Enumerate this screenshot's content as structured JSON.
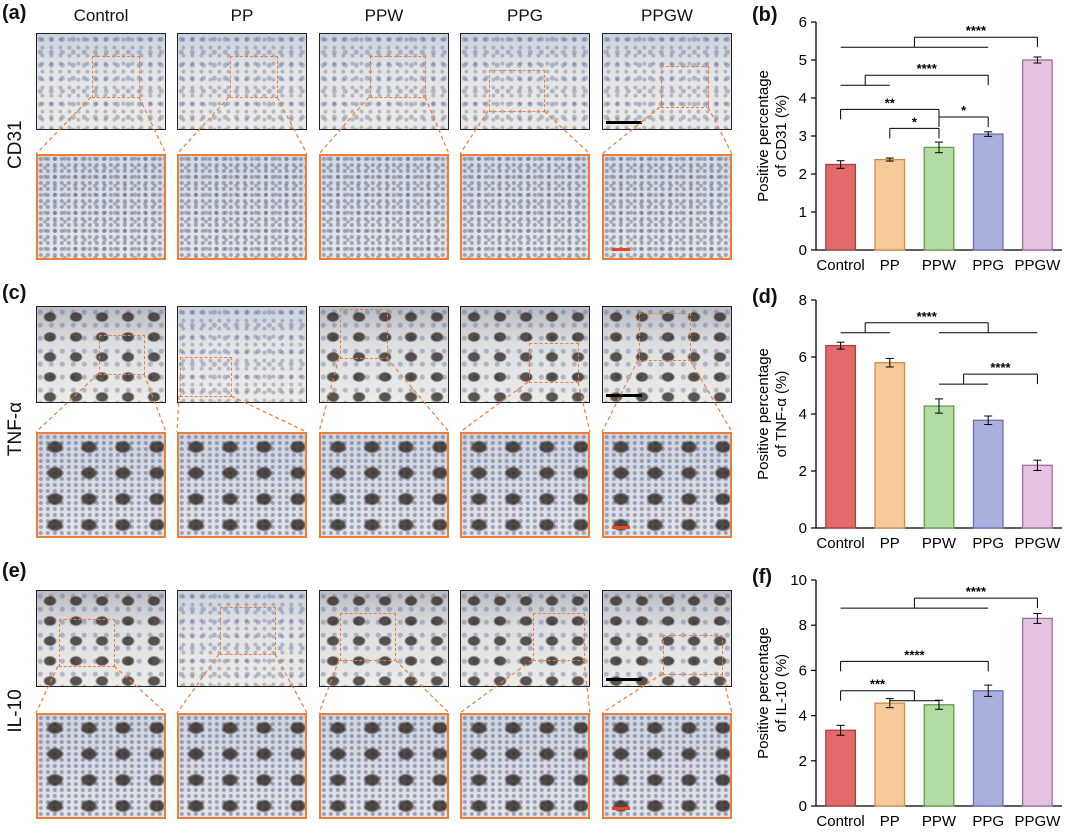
{
  "panel_letters": {
    "a": "(a)",
    "b": "(b)",
    "c": "(c)",
    "d": "(d)",
    "e": "(e)",
    "f": "(f)"
  },
  "columns": [
    "Control",
    "PP",
    "PPW",
    "PPG",
    "PPGW"
  ],
  "row_labels": [
    "CD31",
    "TNF-α",
    "IL-10"
  ],
  "colors": {
    "zoom_frame": "#ee7d35",
    "scale_bar_black": "#000000",
    "scale_bar_red": "#ee4422",
    "bar_fills": [
      "#e26a6a",
      "#f6c99a",
      "#b3dba4",
      "#aab0dd",
      "#e4c3df"
    ],
    "bar_strokes": [
      "#b03a3a",
      "#d38d45",
      "#5ea04e",
      "#6a6fb0",
      "#a46aa6"
    ]
  },
  "chart_data": [
    {
      "id": "b",
      "type": "bar",
      "categories": [
        "Control",
        "PP",
        "PPW",
        "PPG",
        "PPGW"
      ],
      "values": [
        2.25,
        2.38,
        2.7,
        3.05,
        5.0
      ],
      "errors": [
        0.1,
        0.04,
        0.14,
        0.06,
        0.08
      ],
      "ylabel_line1": "Positive percentage",
      "ylabel_line2": "of CD31 (%)",
      "ylim": [
        0,
        6
      ],
      "ticks": [
        0,
        1,
        2,
        3,
        4,
        5,
        6
      ],
      "tick_labels": [
        "0",
        "1",
        "2",
        "3",
        "4",
        "5",
        "6"
      ],
      "significance": [
        {
          "label": "****",
          "from": [
            0,
            1,
            2,
            3
          ],
          "to": 4,
          "level": 5.6
        },
        {
          "label": "****",
          "from": [
            0,
            1
          ],
          "to": 3,
          "level": 4.6
        },
        {
          "label": "**",
          "from": [
            0
          ],
          "to": 2,
          "level": 3.7
        },
        {
          "label": "*",
          "from": [
            1
          ],
          "to": 2,
          "level": 3.2
        },
        {
          "label": "*",
          "from": [
            2
          ],
          "to": 3,
          "level": 3.5
        }
      ]
    },
    {
      "id": "d",
      "type": "bar",
      "categories": [
        "Control",
        "PP",
        "PPW",
        "PPG",
        "PPGW"
      ],
      "values": [
        6.4,
        5.8,
        4.28,
        3.78,
        2.2
      ],
      "errors": [
        0.12,
        0.15,
        0.25,
        0.15,
        0.18
      ],
      "ylabel_line1": "Positive percentage",
      "ylabel_line2": "of TNF-α (%)",
      "ylim": [
        0,
        8
      ],
      "ticks": [
        0,
        2,
        4,
        6,
        8
      ],
      "tick_labels": [
        "0",
        "2",
        "4",
        "6",
        "8"
      ],
      "significance": [
        {
          "label": "****",
          "from": [
            0,
            1
          ],
          "to": [
            2,
            3,
            4
          ],
          "level": 7.2
        },
        {
          "label": "****",
          "from": [
            2,
            3
          ],
          "to": 4,
          "level": 5.4
        }
      ]
    },
    {
      "id": "f",
      "type": "bar",
      "categories": [
        "Control",
        "PP",
        "PPW",
        "PPG",
        "PPGW"
      ],
      "values": [
        3.35,
        4.55,
        4.48,
        5.1,
        8.3
      ],
      "errors": [
        0.22,
        0.2,
        0.2,
        0.25,
        0.22
      ],
      "ylabel_line1": "Positive percentage",
      "ylabel_line2": "of IL-10 (%)",
      "ylim": [
        0,
        10
      ],
      "ticks": [
        0,
        2,
        4,
        6,
        8,
        10
      ],
      "tick_labels": [
        "0",
        "2",
        "4",
        "6",
        "8",
        "10"
      ],
      "significance": [
        {
          "label": "****",
          "from": [
            0,
            1,
            2,
            3
          ],
          "to": 4,
          "level": 9.2
        },
        {
          "label": "****",
          "from": [
            0
          ],
          "to": 3,
          "level": 6.4
        },
        {
          "label": "***",
          "from": [
            0
          ],
          "to": [
            1,
            2
          ],
          "level": 5.1
        }
      ]
    }
  ]
}
